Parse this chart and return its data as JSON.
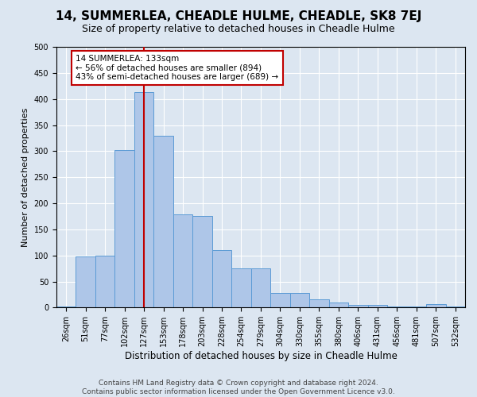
{
  "title1": "14, SUMMERLEA, CHEADLE HULME, CHEADLE, SK8 7EJ",
  "title2": "Size of property relative to detached houses in Cheadle Hulme",
  "xlabel": "Distribution of detached houses by size in Cheadle Hulme",
  "ylabel": "Number of detached properties",
  "categories": [
    "26sqm",
    "51sqm",
    "77sqm",
    "102sqm",
    "127sqm",
    "153sqm",
    "178sqm",
    "203sqm",
    "228sqm",
    "254sqm",
    "279sqm",
    "304sqm",
    "330sqm",
    "355sqm",
    "380sqm",
    "406sqm",
    "431sqm",
    "456sqm",
    "481sqm",
    "507sqm",
    "532sqm"
  ],
  "values": [
    2,
    98,
    100,
    302,
    413,
    330,
    178,
    175,
    110,
    75,
    75,
    28,
    28,
    16,
    10,
    5,
    5,
    2,
    2,
    7,
    2
  ],
  "bar_color": "#aec6e8",
  "bar_edge_color": "#5b9bd5",
  "vline_color": "#c00000",
  "annotation_text": "14 SUMMERLEA: 133sqm\n← 56% of detached houses are smaller (894)\n43% of semi-detached houses are larger (689) →",
  "annotation_box_color": "#ffffff",
  "annotation_box_edge": "#c00000",
  "background_color": "#dce6f1",
  "plot_bg_color": "#dce6f1",
  "footer1": "Contains HM Land Registry data © Crown copyright and database right 2024.",
  "footer2": "Contains public sector information licensed under the Open Government Licence v3.0.",
  "ylim": [
    0,
    500
  ],
  "yticks": [
    0,
    50,
    100,
    150,
    200,
    250,
    300,
    350,
    400,
    450,
    500
  ],
  "title1_fontsize": 11,
  "title2_fontsize": 9,
  "xlabel_fontsize": 8.5,
  "ylabel_fontsize": 8,
  "tick_fontsize": 7,
  "footer_fontsize": 6.5
}
